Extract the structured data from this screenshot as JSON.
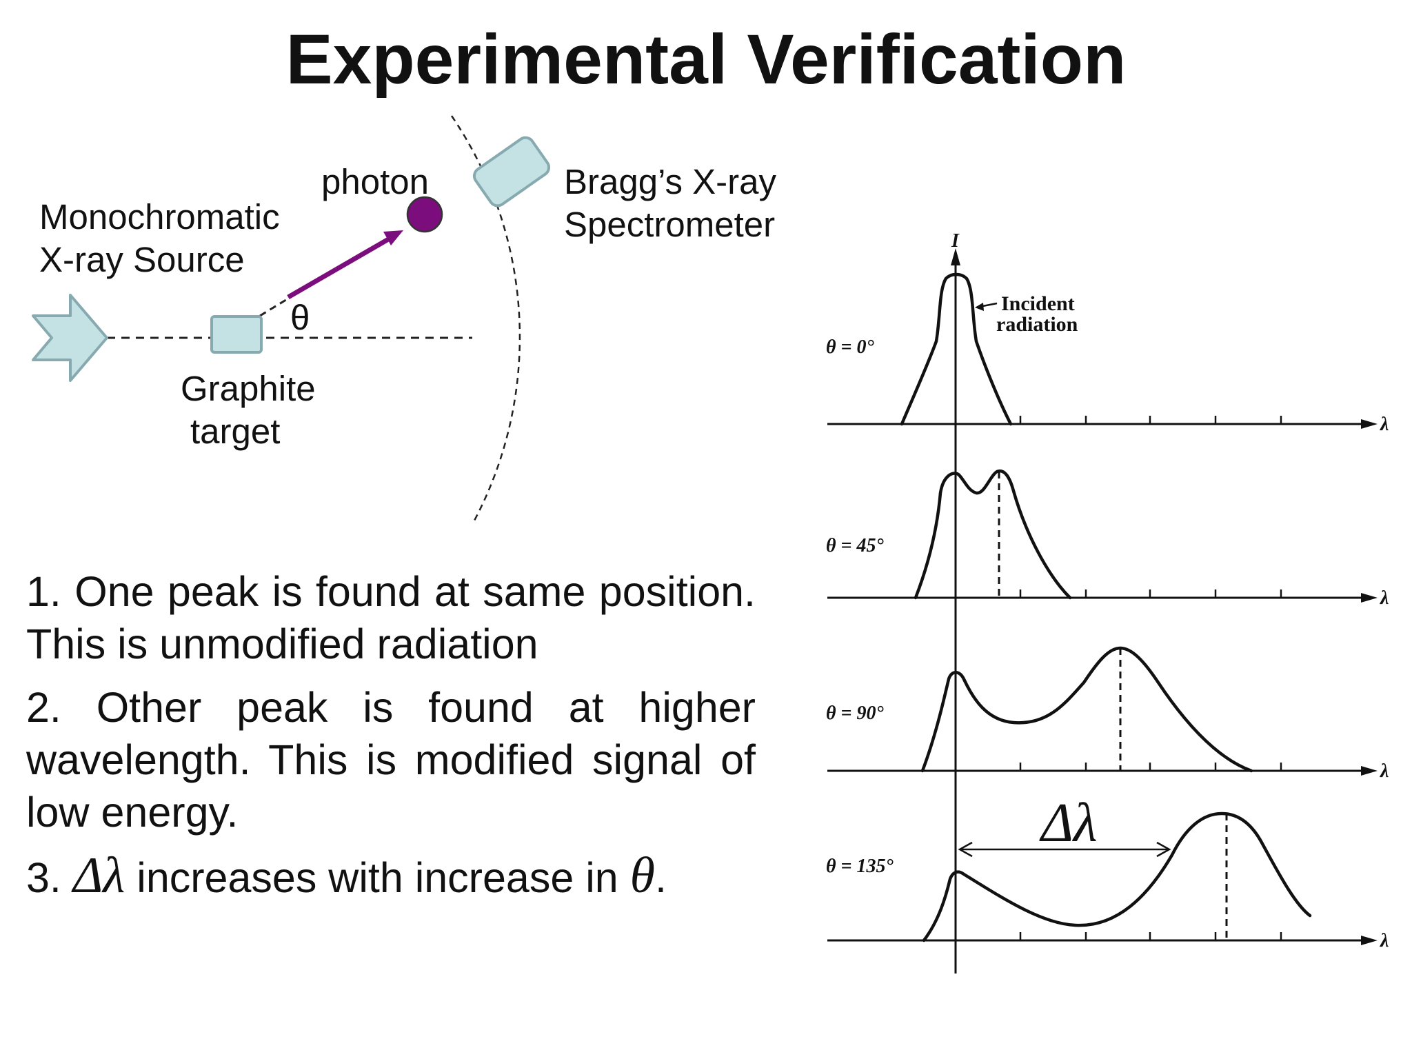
{
  "title": "Experimental Verification",
  "setup": {
    "source_label": [
      "Monochromatic",
      "X-ray Source"
    ],
    "photon_label": "photon",
    "spectrometer_label": [
      "Bragg’s X-ray",
      "Spectrometer"
    ],
    "target_label": [
      "Graphite",
      "target"
    ],
    "angle_symbol": "θ",
    "colors": {
      "device_fill": "#c4e2e4",
      "device_stroke": "#87aab0",
      "photon": "#7c0d7c"
    }
  },
  "graphs": {
    "y_axis_label": "I",
    "x_axis_label": "λ",
    "incident_note": [
      "Incident",
      "radiation"
    ],
    "delta_label": "Δλ",
    "panels": [
      {
        "angle_label": "θ = 0°"
      },
      {
        "angle_label": "θ = 45°"
      },
      {
        "angle_label": "θ = 90°"
      },
      {
        "angle_label": "θ = 135°"
      }
    ]
  },
  "points": {
    "p1": "1. One peak is found at same position. This is unmodified radiation",
    "p2": "2. Other peak is found at higher wavelength. This is modified signal of low energy.",
    "p3_num": "3.",
    "p3_sym1": "Δλ",
    "p3_mid": "increases with increase in",
    "p3_sym2": "θ",
    "p3_end": "."
  }
}
